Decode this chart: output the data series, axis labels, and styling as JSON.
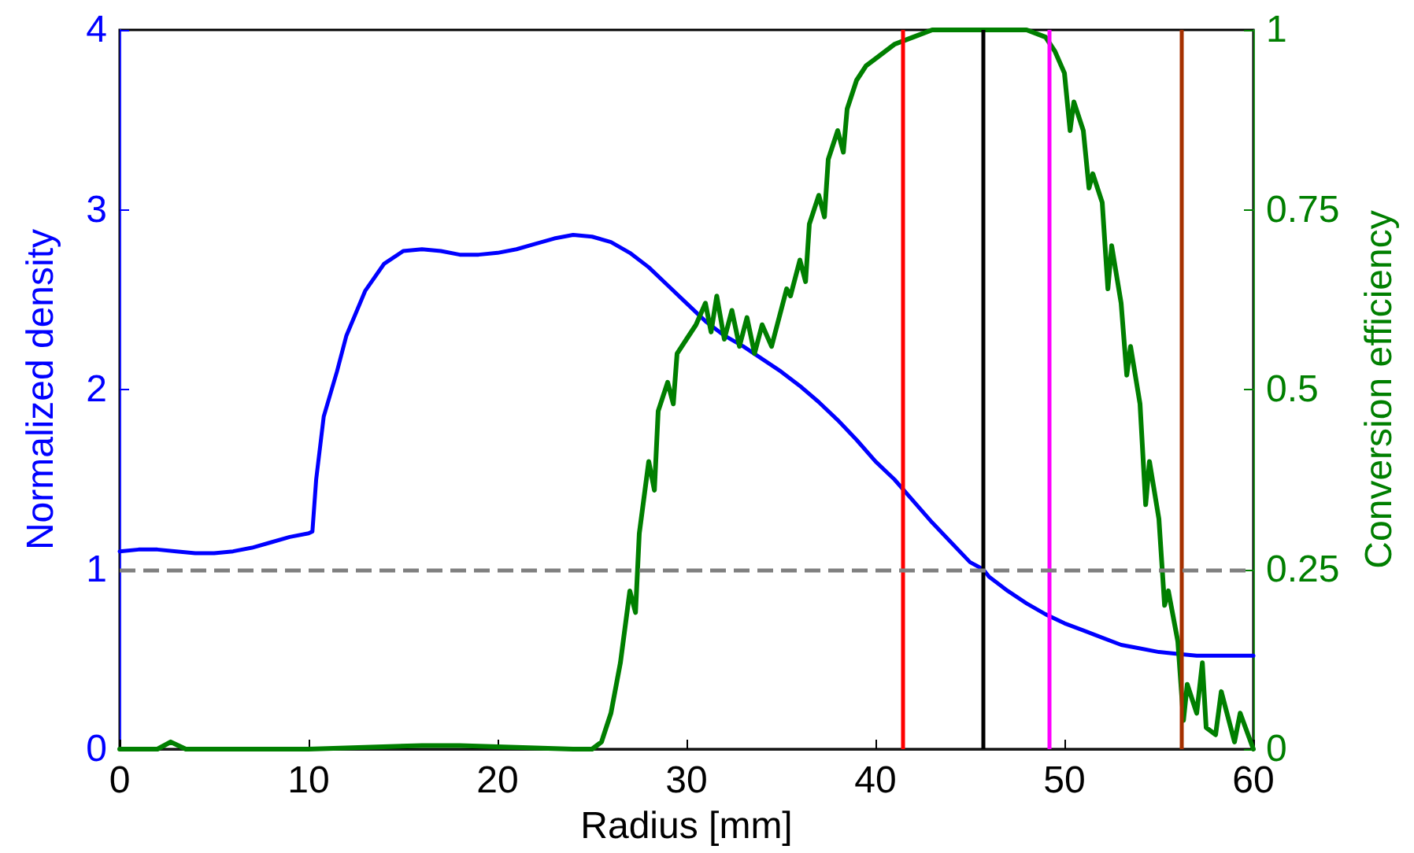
{
  "chart_data": {
    "type": "line",
    "xlabel": "Radius [mm]",
    "ylabel": "Normalized density",
    "y2label": "Conversion efficiency",
    "xlim": [
      0,
      60
    ],
    "xticks": [
      0,
      10,
      20,
      30,
      40,
      50,
      60
    ],
    "ylim": [
      0,
      4
    ],
    "yticks": [
      0,
      1,
      2,
      3,
      4
    ],
    "y2lim": [
      0,
      1
    ],
    "y2ticks": [
      0,
      0.25,
      0.5,
      0.75,
      1
    ],
    "grid": false,
    "marker": "none",
    "line_style": "solid",
    "series": [
      {
        "color": "#0000ff",
        "x": [
          0,
          1,
          2,
          3,
          4,
          5,
          6,
          7,
          8,
          9,
          10,
          10.2,
          10.4,
          10.8,
          11.5,
          12,
          13,
          14,
          15,
          16,
          17,
          18,
          19,
          20,
          21,
          22,
          23,
          24,
          25,
          26,
          27,
          28,
          29,
          30,
          31,
          32,
          33,
          34,
          35,
          36,
          37,
          38,
          39,
          40,
          41,
          42,
          43,
          44,
          45,
          45.7,
          46,
          47,
          48,
          49,
          50,
          51,
          52,
          53,
          54,
          55,
          56,
          57,
          58,
          59,
          60
        ],
        "values": [
          1.1,
          1.11,
          1.11,
          1.1,
          1.09,
          1.09,
          1.1,
          1.12,
          1.15,
          1.18,
          1.2,
          1.21,
          1.5,
          1.85,
          2.1,
          2.3,
          2.55,
          2.7,
          2.77,
          2.78,
          2.77,
          2.75,
          2.75,
          2.76,
          2.78,
          2.81,
          2.84,
          2.86,
          2.85,
          2.82,
          2.76,
          2.68,
          2.58,
          2.48,
          2.38,
          2.3,
          2.24,
          2.17,
          2.1,
          2.02,
          1.93,
          1.83,
          1.72,
          1.6,
          1.5,
          1.38,
          1.26,
          1.15,
          1.04,
          1.0,
          0.96,
          0.88,
          0.81,
          0.75,
          0.7,
          0.66,
          0.62,
          0.58,
          0.56,
          0.54,
          0.53,
          0.52,
          0.52,
          0.52,
          0.52
        ]
      },
      {
        "color": "#007f00",
        "axis": "y2",
        "x": [
          0,
          2,
          2.7,
          3.5,
          10,
          16,
          18,
          24,
          25,
          25.5,
          26,
          26.5,
          27,
          27.3,
          27.5,
          28,
          28.3,
          28.5,
          29,
          29.3,
          29.5,
          30,
          30.5,
          31,
          31.3,
          31.6,
          32,
          32.4,
          32.8,
          33.2,
          33.6,
          34,
          34.5,
          35,
          35.3,
          35.5,
          36,
          36.3,
          36.5,
          37,
          37.3,
          37.5,
          38,
          38.3,
          38.5,
          39,
          39.5,
          40,
          41,
          42,
          43,
          48,
          49,
          49.5,
          50,
          50.3,
          50.5,
          51,
          51.3,
          51.5,
          52,
          52.3,
          52.5,
          53,
          53.3,
          53.5,
          54,
          54.3,
          54.5,
          55,
          55.3,
          55.5,
          56,
          56.3,
          56.5,
          57,
          57.3,
          57.5,
          58,
          58.3,
          59,
          59.3,
          60
        ],
        "values": [
          0,
          0,
          0.01,
          0,
          0,
          0.005,
          0.005,
          0,
          0,
          0.01,
          0.05,
          0.12,
          0.22,
          0.19,
          0.3,
          0.4,
          0.36,
          0.47,
          0.51,
          0.48,
          0.55,
          0.57,
          0.59,
          0.62,
          0.58,
          0.63,
          0.57,
          0.61,
          0.56,
          0.6,
          0.55,
          0.59,
          0.56,
          0.61,
          0.64,
          0.63,
          0.68,
          0.65,
          0.73,
          0.77,
          0.74,
          0.82,
          0.86,
          0.83,
          0.89,
          0.93,
          0.95,
          0.96,
          0.98,
          0.99,
          1.0,
          1.0,
          0.99,
          0.97,
          0.94,
          0.86,
          0.9,
          0.86,
          0.78,
          0.8,
          0.76,
          0.64,
          0.7,
          0.62,
          0.52,
          0.56,
          0.48,
          0.34,
          0.4,
          0.32,
          0.2,
          0.22,
          0.15,
          0.04,
          0.09,
          0.05,
          0.12,
          0.03,
          0.02,
          0.08,
          0.01,
          0.05,
          0
        ]
      }
    ],
    "ref_lines": [
      {
        "axis": "x",
        "value": 41.45,
        "color": "#ff0000"
      },
      {
        "axis": "x",
        "value": 45.67,
        "color": "#000000"
      },
      {
        "axis": "x",
        "value": 49.2,
        "color": "#ff00ff"
      },
      {
        "axis": "x",
        "value": 56.2,
        "color": "#a53000"
      },
      {
        "axis": "y",
        "value": 1,
        "color": "#808080",
        "line_style": "dashed"
      }
    ]
  }
}
